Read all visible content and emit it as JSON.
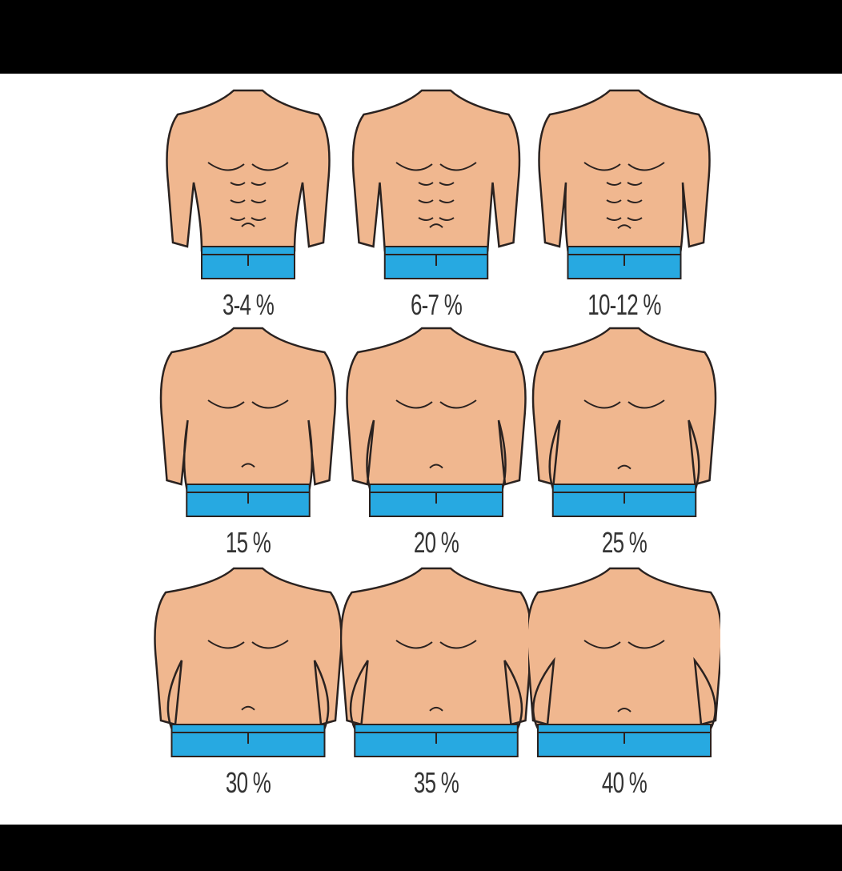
{
  "colors": {
    "skin": "#f0b78f",
    "outline": "#2a2220",
    "shorts": "#27a9e1",
    "background": "#ffffff",
    "frame": "#000000"
  },
  "figures": [
    {
      "label": "3-4 %"
    },
    {
      "label": "6-7 %"
    },
    {
      "label": "10-12 %"
    },
    {
      "label": "15 %"
    },
    {
      "label": "20 %"
    },
    {
      "label": "25 %"
    },
    {
      "label": "30 %"
    },
    {
      "label": "35 %"
    },
    {
      "label": "40 %"
    }
  ]
}
